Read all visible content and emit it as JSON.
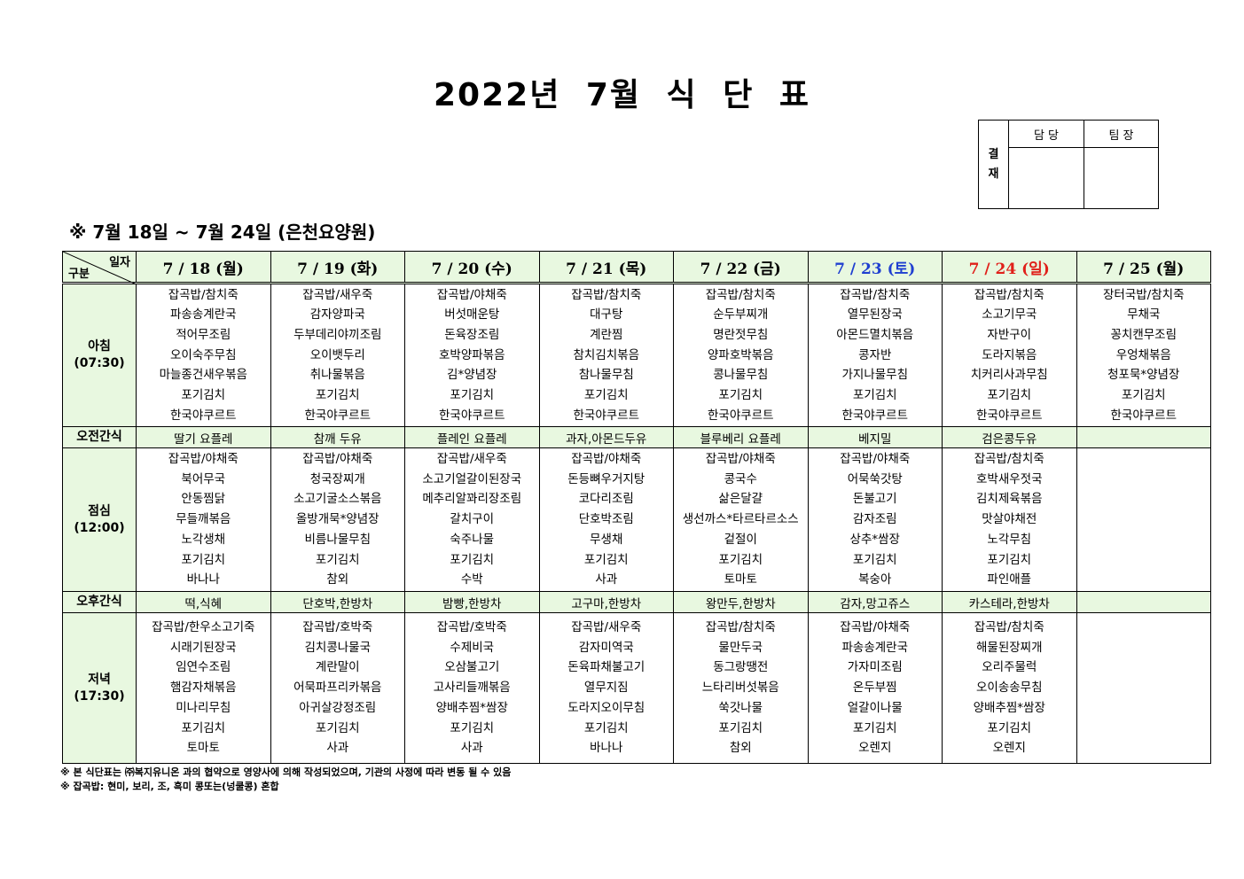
{
  "title": "2022년 7월 식 단 표",
  "approval": {
    "label": "결\n재",
    "cols": [
      "담 당",
      "팀 장"
    ]
  },
  "period": "※ 7월 18일 ~ 7월 24일 (은천요양원)",
  "corner": {
    "top": "일자",
    "bottom": "구분"
  },
  "colors": {
    "header_bg": "#e8f8e0",
    "saturday": "#1f3fd0",
    "sunday": "#e0201a"
  },
  "days": [
    {
      "label": "7 / 18 (월)",
      "color": "#000000"
    },
    {
      "label": "7 / 19 (화)",
      "color": "#000000"
    },
    {
      "label": "7 / 20 (수)",
      "color": "#000000"
    },
    {
      "label": "7 / 21 (목)",
      "color": "#000000"
    },
    {
      "label": "7 / 22 (금)",
      "color": "#000000"
    },
    {
      "label": "7 / 23 (토)",
      "color": "#1f3fd0"
    },
    {
      "label": "7 / 24 (일)",
      "color": "#e0201a"
    },
    {
      "label": "7 / 25 (월)",
      "color": "#000000"
    }
  ],
  "rows": [
    {
      "type": "meal",
      "label": "아침",
      "time": "(07:30)",
      "cells": [
        [
          "잡곡밥/참치죽",
          "파송송계란국",
          "적어무조림",
          "오이숙주무침",
          "마늘종건새우볶음",
          "포기김치",
          "한국야쿠르트"
        ],
        [
          "잡곡밥/새우죽",
          "감자양파국",
          "두부데리야끼조림",
          "오이뱃두리",
          "취나물볶음",
          "포기김치",
          "한국야쿠르트"
        ],
        [
          "잡곡밥/야채죽",
          "버섯매운탕",
          "돈육장조림",
          "호박양파볶음",
          "김*양념장",
          "포기김치",
          "한국야쿠르트"
        ],
        [
          "잡곡밥/참치죽",
          "대구탕",
          "계란찜",
          "참치김치볶음",
          "참나물무침",
          "포기김치",
          "한국야쿠르트"
        ],
        [
          "잡곡밥/참치죽",
          "순두부찌개",
          "명란젓무침",
          "양파호박볶음",
          "콩나물무침",
          "포기김치",
          "한국야쿠르트"
        ],
        [
          "잡곡밥/참치죽",
          "열무된장국",
          "아몬드멸치볶음",
          "콩자반",
          "가지나물무침",
          "포기김치",
          "한국야쿠르트"
        ],
        [
          "잡곡밥/참치죽",
          "소고기무국",
          "자반구이",
          "도라지볶음",
          "치커리사과무침",
          "포기김치",
          "한국야쿠르트"
        ],
        [
          "장터국밥/참치죽",
          "무채국",
          "꽁치캔무조림",
          "우엉채볶음",
          "청포묵*양념장",
          "포기김치",
          "한국야쿠르트"
        ]
      ]
    },
    {
      "type": "snack",
      "label": "오전간식",
      "cells": [
        "딸기 요플레",
        "참깨 두유",
        "플레인 요플레",
        "과자,아몬드두유",
        "블루베리 요플레",
        "베지밀",
        "검은콩두유",
        ""
      ]
    },
    {
      "type": "meal",
      "label": "점심",
      "time": "(12:00)",
      "cells": [
        [
          "잡곡밥/야채죽",
          "북어무국",
          "안동찜닭",
          "무들깨볶음",
          "노각생채",
          "포기김치",
          "바나나"
        ],
        [
          "잡곡밥/야채죽",
          "청국장찌개",
          "소고기굴소스볶음",
          "올방개묵*양념장",
          "비름나물무침",
          "포기김치",
          "참외"
        ],
        [
          "잡곡밥/새우죽",
          "소고기얼갈이된장국",
          "메추리알꽈리장조림",
          "갈치구이",
          "숙주나물",
          "포기김치",
          "수박"
        ],
        [
          "잡곡밥/야채죽",
          "돈등뼈우거지탕",
          "코다리조림",
          "단호박조림",
          "무생채",
          "포기김치",
          "사과"
        ],
        [
          "잡곡밥/야채죽",
          "콩국수",
          "삶은달걀",
          "생선까스*타르타르소스",
          "겉절이",
          "포기김치",
          "토마토"
        ],
        [
          "잡곡밥/야채죽",
          "어묵쑥갓탕",
          "돈불고기",
          "감자조림",
          "상추*쌈장",
          "포기김치",
          "복숭아"
        ],
        [
          "잡곡밥/참치죽",
          "호박새우젓국",
          "김치제육볶음",
          "맛살야채전",
          "노각무침",
          "포기김치",
          "파인애플"
        ],
        []
      ]
    },
    {
      "type": "snack",
      "label": "오후간식",
      "cells": [
        "떡,식혜",
        "단호박,한방차",
        "밤빵,한방차",
        "고구마,한방차",
        "왕만두,한방차",
        "감자,망고쥬스",
        "카스테라,한방차",
        ""
      ]
    },
    {
      "type": "meal",
      "label": "저녁",
      "time": "(17:30)",
      "cells": [
        [
          "잡곡밥/한우소고기죽",
          "시래기된장국",
          "임연수조림",
          "햄감자채볶음",
          "미나리무침",
          "포기김치",
          "토마토"
        ],
        [
          "잡곡밥/호박죽",
          "김치콩나물국",
          "계란말이",
          "어묵파프리카볶음",
          "아귀살강정조림",
          "포기김치",
          "사과"
        ],
        [
          "잡곡밥/호박죽",
          "수제비국",
          "오삼불고기",
          "고사리들깨볶음",
          "양배추찜*쌈장",
          "포기김치",
          "사과"
        ],
        [
          "잡곡밥/새우죽",
          "감자미역국",
          "돈육파채불고기",
          "열무지짐",
          "도라지오이무침",
          "포기김치",
          "바나나"
        ],
        [
          "잡곡밥/참치죽",
          "물만두국",
          "동그랑땡전",
          "느타리버섯볶음",
          "쑥갓나물",
          "포기김치",
          "참외"
        ],
        [
          "잡곡밥/야채죽",
          "파송송계란국",
          "가자미조림",
          "온두부찜",
          "얼갈이나물",
          "포기김치",
          "오렌지"
        ],
        [
          "잡곡밥/참치죽",
          "해물된장찌개",
          "오리주물럭",
          "오이송송무침",
          "양배추찜*쌈장",
          "포기김치",
          "오렌지"
        ],
        []
      ]
    }
  ],
  "footnotes": [
    "※ 본 식단표는 ㈜복지유니온 과의 협약으로 영양사에 의해 작성되었으며, 기관의 사정에 따라 변동 될 수 있음",
    "※ 잡곡밥: 현미, 보리, 조, 흑미 콩또는(넝쿨콩) 혼합"
  ]
}
